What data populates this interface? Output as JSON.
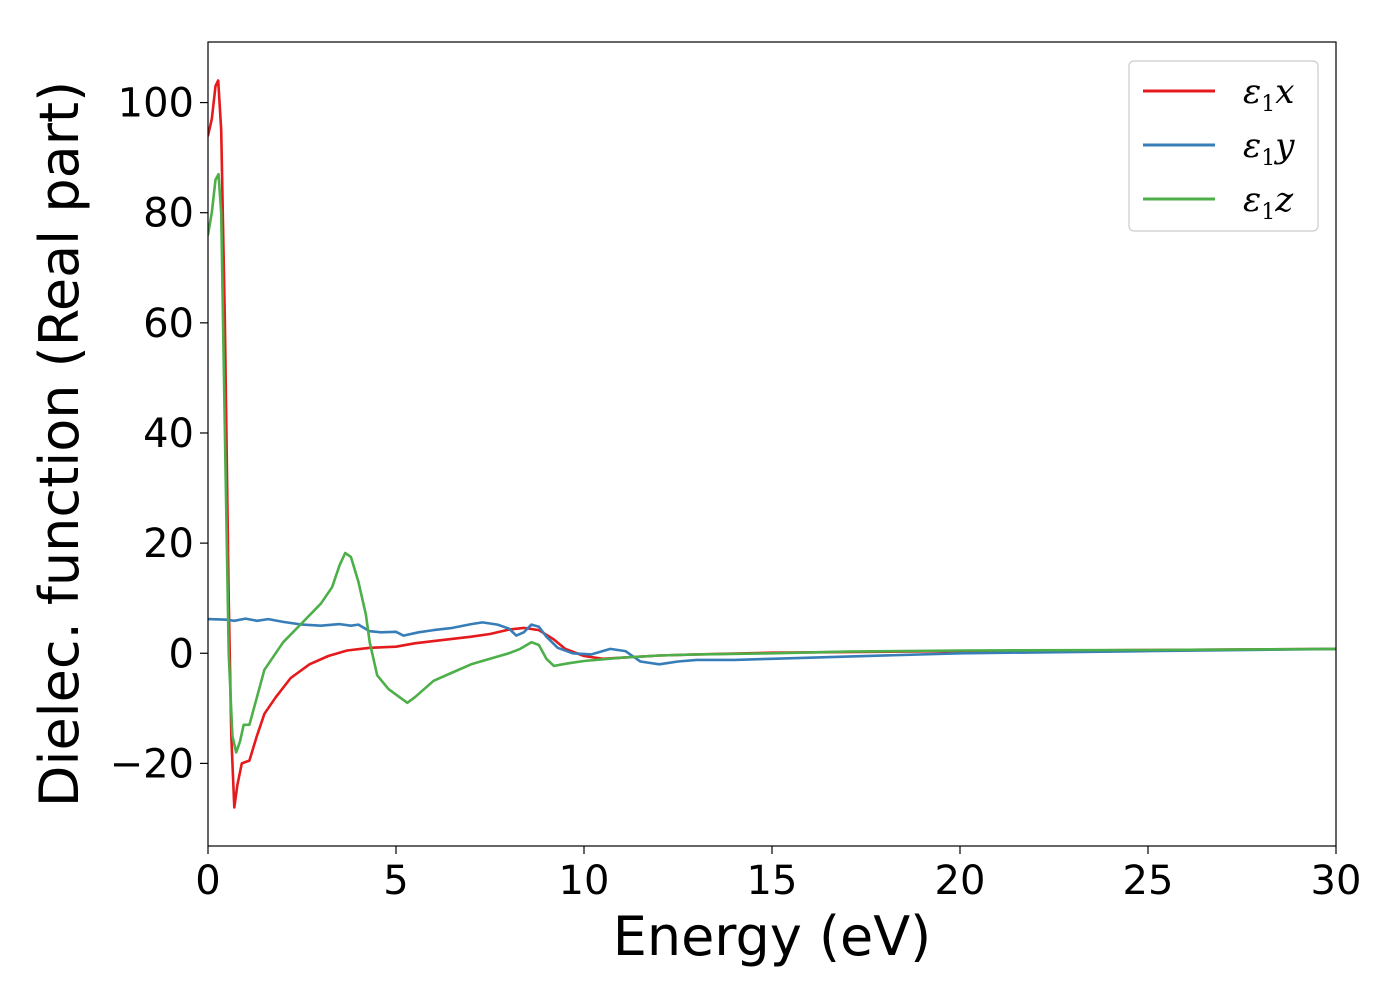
{
  "chart_data": {
    "type": "line",
    "title": "",
    "xlabel": "Energy (eV)",
    "ylabel": "Dielec. function (Real part)",
    "xlim": [
      0,
      30
    ],
    "ylim": [
      -35,
      111
    ],
    "xticks": [
      0,
      5,
      10,
      15,
      20,
      25,
      30
    ],
    "xtick_labels": [
      "0",
      "5",
      "10",
      "15",
      "20",
      "25",
      "30"
    ],
    "yticks": [
      -20,
      0,
      20,
      40,
      60,
      80,
      100
    ],
    "ytick_labels": [
      "−20",
      "0",
      "20",
      "40",
      "60",
      "80",
      "100"
    ],
    "grid": false,
    "legend_position": "top-right",
    "series": [
      {
        "name": "ε₁x",
        "legend": {
          "base": "ε",
          "sub": "1",
          "suffix": "x"
        },
        "color": "#e41a1c",
        "points": [
          [
            0.0,
            94
          ],
          [
            0.1,
            97
          ],
          [
            0.2,
            103
          ],
          [
            0.27,
            104
          ],
          [
            0.35,
            95
          ],
          [
            0.45,
            60
          ],
          [
            0.55,
            10
          ],
          [
            0.62,
            -15
          ],
          [
            0.7,
            -28
          ],
          [
            0.78,
            -24
          ],
          [
            0.9,
            -20
          ],
          [
            1.1,
            -19.5
          ],
          [
            1.3,
            -15
          ],
          [
            1.5,
            -11
          ],
          [
            1.8,
            -8
          ],
          [
            2.2,
            -4.5
          ],
          [
            2.7,
            -2
          ],
          [
            3.2,
            -0.5
          ],
          [
            3.7,
            0.5
          ],
          [
            4.3,
            1
          ],
          [
            5.0,
            1.2
          ],
          [
            5.5,
            1.8
          ],
          [
            6.0,
            2.2
          ],
          [
            7.0,
            3.0
          ],
          [
            7.5,
            3.5
          ],
          [
            8.0,
            4.3
          ],
          [
            8.4,
            4.6
          ],
          [
            8.8,
            4.2
          ],
          [
            9.2,
            2.5
          ],
          [
            9.5,
            0.8
          ],
          [
            10.0,
            -0.5
          ],
          [
            10.5,
            -1.0
          ],
          [
            11.0,
            -0.8
          ],
          [
            12.0,
            -0.4
          ],
          [
            13.0,
            -0.2
          ],
          [
            15.0,
            0.1
          ],
          [
            20.0,
            0.4
          ],
          [
            25.0,
            0.6
          ],
          [
            30.0,
            0.8
          ]
        ]
      },
      {
        "name": "ε₁y",
        "legend": {
          "base": "ε",
          "sub": "1",
          "suffix": "y"
        },
        "color": "#377eb8",
        "points": [
          [
            0.0,
            6.2
          ],
          [
            0.5,
            6.1
          ],
          [
            0.7,
            5.9
          ],
          [
            1.0,
            6.3
          ],
          [
            1.3,
            5.9
          ],
          [
            1.6,
            6.2
          ],
          [
            2.0,
            5.7
          ],
          [
            2.5,
            5.2
          ],
          [
            3.0,
            5.0
          ],
          [
            3.5,
            5.3
          ],
          [
            3.8,
            5.0
          ],
          [
            4.0,
            5.2
          ],
          [
            4.3,
            4.0
          ],
          [
            4.6,
            3.8
          ],
          [
            5.0,
            3.9
          ],
          [
            5.2,
            3.2
          ],
          [
            5.6,
            3.8
          ],
          [
            6.0,
            4.2
          ],
          [
            6.5,
            4.6
          ],
          [
            7.0,
            5.3
          ],
          [
            7.3,
            5.6
          ],
          [
            7.7,
            5.2
          ],
          [
            8.0,
            4.5
          ],
          [
            8.2,
            3.2
          ],
          [
            8.4,
            3.8
          ],
          [
            8.6,
            5.2
          ],
          [
            8.8,
            4.8
          ],
          [
            9.0,
            3.0
          ],
          [
            9.3,
            1.0
          ],
          [
            9.7,
            0.0
          ],
          [
            10.2,
            -0.2
          ],
          [
            10.7,
            0.8
          ],
          [
            11.1,
            0.4
          ],
          [
            11.5,
            -1.5
          ],
          [
            12.0,
            -2.0
          ],
          [
            12.5,
            -1.5
          ],
          [
            13.0,
            -1.2
          ],
          [
            14.0,
            -1.2
          ],
          [
            15.0,
            -1.0
          ],
          [
            17.0,
            -0.6
          ],
          [
            20.0,
            0.0
          ],
          [
            25.0,
            0.4
          ],
          [
            30.0,
            0.8
          ]
        ]
      },
      {
        "name": "ε₁z",
        "legend": {
          "base": "ε",
          "sub": "1",
          "suffix": "z"
        },
        "color": "#4daf4a",
        "points": [
          [
            0.0,
            76
          ],
          [
            0.1,
            80
          ],
          [
            0.2,
            86
          ],
          [
            0.28,
            87
          ],
          [
            0.35,
            80
          ],
          [
            0.45,
            40
          ],
          [
            0.55,
            0
          ],
          [
            0.65,
            -15
          ],
          [
            0.75,
            -18
          ],
          [
            0.85,
            -16
          ],
          [
            0.95,
            -13
          ],
          [
            1.1,
            -13
          ],
          [
            1.3,
            -8
          ],
          [
            1.5,
            -3
          ],
          [
            1.7,
            -1
          ],
          [
            2.0,
            2
          ],
          [
            2.5,
            5.5
          ],
          [
            3.0,
            9
          ],
          [
            3.3,
            12
          ],
          [
            3.5,
            16
          ],
          [
            3.65,
            18.2
          ],
          [
            3.8,
            17.5
          ],
          [
            4.0,
            13
          ],
          [
            4.2,
            7
          ],
          [
            4.3,
            2
          ],
          [
            4.5,
            -4
          ],
          [
            4.8,
            -6.5
          ],
          [
            5.0,
            -7.5
          ],
          [
            5.3,
            -9
          ],
          [
            5.5,
            -8
          ],
          [
            6.0,
            -5
          ],
          [
            6.5,
            -3.5
          ],
          [
            7.0,
            -2
          ],
          [
            7.5,
            -1
          ],
          [
            8.0,
            0
          ],
          [
            8.3,
            0.8
          ],
          [
            8.6,
            2
          ],
          [
            8.8,
            1.5
          ],
          [
            9.0,
            -1
          ],
          [
            9.2,
            -2.3
          ],
          [
            9.6,
            -1.8
          ],
          [
            10.0,
            -1.4
          ],
          [
            11.0,
            -0.8
          ],
          [
            12.0,
            -0.4
          ],
          [
            13.0,
            -0.2
          ],
          [
            15.0,
            0.0
          ],
          [
            17.0,
            0.3
          ],
          [
            20.0,
            0.5
          ],
          [
            25.0,
            0.6
          ],
          [
            30.0,
            0.8
          ]
        ]
      }
    ]
  }
}
